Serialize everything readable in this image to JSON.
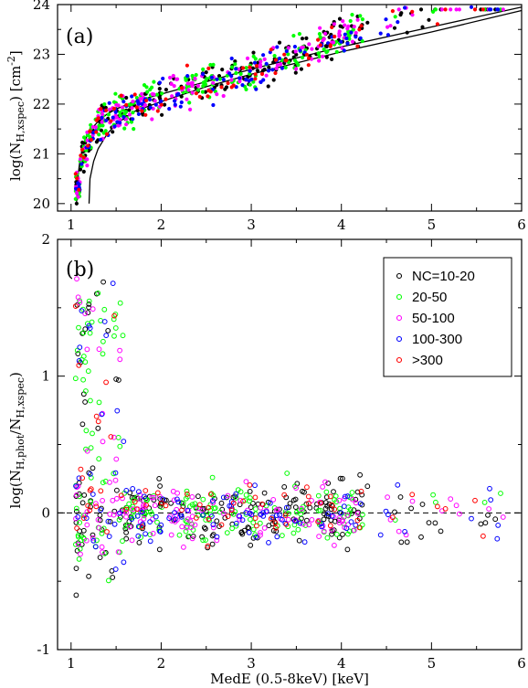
{
  "chart_data": [
    {
      "type": "scatter",
      "panel_label": "(a)",
      "xlim": [
        0.85,
        6.0
      ],
      "ylim": [
        19.85,
        24.0
      ],
      "xticks": [
        "1",
        "2",
        "3",
        "4",
        "5",
        "6"
      ],
      "yticks": [
        "20",
        "21",
        "22",
        "23",
        "24"
      ],
      "ylabel": "log(N",
      "ylabel_sub": "H,xspec",
      "ylabel_tail": ") [cm",
      "ylabel_sup": "-2",
      "ylabel_end": "]",
      "curves": [
        {
          "x": [
            1.06,
            1.08,
            1.1,
            1.15,
            1.2,
            1.3,
            1.4,
            1.5,
            1.7,
            2.0,
            2.5,
            3.0,
            4.0,
            5.0,
            6.0
          ],
          "y": [
            20.0,
            20.6,
            20.9,
            21.25,
            21.45,
            21.65,
            21.8,
            21.9,
            22.05,
            22.2,
            22.45,
            22.7,
            23.15,
            23.55,
            23.95
          ]
        },
        {
          "x": [
            1.2,
            1.21,
            1.25,
            1.3,
            1.4,
            1.5,
            1.7,
            2.0,
            2.5,
            3.0,
            4.0,
            5.0,
            6.0
          ],
          "y": [
            20.0,
            20.5,
            20.85,
            21.1,
            21.4,
            21.6,
            21.85,
            22.05,
            22.35,
            22.6,
            23.05,
            23.45,
            23.88
          ]
        }
      ],
      "scatter_model": {
        "note_free": true,
        "n_per_series": [
          210,
          200,
          150,
          110,
          70
        ]
      }
    },
    {
      "type": "scatter",
      "panel_label": "(b)",
      "xlim": [
        0.85,
        6.0
      ],
      "ylim": [
        -1.0,
        2.0
      ],
      "xticks": [
        "1",
        "2",
        "3",
        "4",
        "5",
        "6"
      ],
      "yticks": [
        "-1",
        "0",
        "1",
        "2"
      ],
      "xlabel": "MedE (0.5-8keV) [keV]",
      "ylabel": "log(N",
      "ylabel_sub": "H,phot",
      "ylabel_mid": "/N",
      "ylabel_sub2": "H,xspec",
      "ylabel_end": ")",
      "reference_line_y": 0,
      "series": [
        {
          "name": "NC=10-20",
          "color": "#000000"
        },
        {
          "name": "20-50",
          "color": "#00ff00"
        },
        {
          "name": "50-100",
          "color": "#ff00ff"
        },
        {
          "name": "100-300",
          "color": "#0000ff"
        },
        {
          "name": ">300",
          "color": "#ff0000"
        }
      ],
      "legend_position": "top-right"
    }
  ]
}
